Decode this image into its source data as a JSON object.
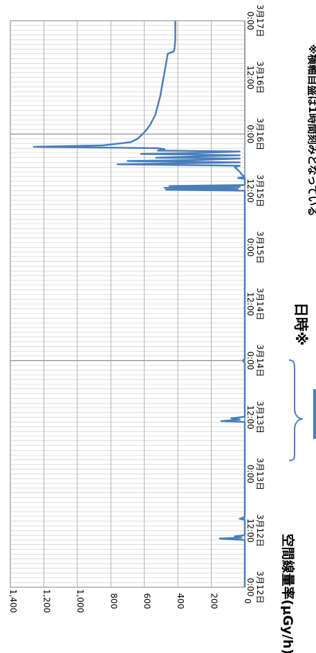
{
  "chart_data": {
    "type": "line",
    "title": "",
    "xlabel": "日時※",
    "ylabel": "空間線量率(μGy/h)",
    "note": "※横軸目盛は1時間刻みとなっている",
    "x_unit_hours_from_start": "3月12日 0:00 origin",
    "xlim_hours": [
      0,
      120
    ],
    "ylim": [
      0,
      1400
    ],
    "y_ticks": [
      0,
      200,
      400,
      600,
      800,
      1000,
      1200,
      1400
    ],
    "y_tick_labels": [
      "0",
      "200",
      "400",
      "600",
      "800",
      "1,000",
      "1,200",
      "1,400"
    ],
    "x_tick_hours": [
      0,
      12,
      24,
      36,
      48,
      60,
      72,
      84,
      96,
      108,
      120
    ],
    "x_tick_labels": [
      [
        "3月12日",
        "0:00"
      ],
      [
        "3月12日",
        "12:00"
      ],
      [
        "3月13日",
        "0:00"
      ],
      [
        "3月13日",
        "12:00"
      ],
      [
        "3月14日",
        "0:00"
      ],
      [
        "3月14日",
        "12:00"
      ],
      [
        "3月15日",
        "0:00"
      ],
      [
        "3月15日",
        "12:00"
      ],
      [
        "3月16日",
        "0:00"
      ],
      [
        "3月16日",
        "12:00"
      ],
      [
        "3月17日",
        "0:00"
      ]
    ],
    "grid": true,
    "series": [
      {
        "name": "",
        "color": "#4a7ebb",
        "x_hours": [
          0,
          10,
          10.3,
          10.5,
          10.8,
          11,
          14.3,
          14.5,
          14.8,
          15,
          35,
          35.2,
          35.5,
          35.8,
          36.1,
          47.5,
          48,
          48.5,
          84,
          84.2,
          84.4,
          84.6,
          84.8,
          85,
          85.2,
          86.5,
          86.7,
          86.9,
          87.5,
          88,
          89,
          89.3,
          89.6,
          90,
          90.3,
          90.5,
          90.8,
          91,
          91.3,
          91.5,
          91.8,
          92,
          92.3,
          92.5,
          92.8,
          93,
          93.3,
          93.6,
          94,
          94.3,
          95,
          96,
          97,
          98,
          99,
          100,
          102,
          104,
          106,
          108,
          110,
          112,
          113,
          113.5,
          114,
          116,
          118,
          120
        ],
        "values": [
          0,
          0,
          150,
          20,
          60,
          0,
          0,
          30,
          5,
          0,
          0,
          140,
          30,
          80,
          0,
          0,
          10,
          0,
          0,
          470,
          40,
          480,
          30,
          450,
          0,
          0,
          40,
          0,
          20,
          30,
          60,
          30,
          760,
          30,
          700,
          300,
          30,
          530,
          250,
          30,
          620,
          300,
          30,
          520,
          480,
          520,
          1260,
          850,
          750,
          680,
          640,
          610,
          585,
          565,
          550,
          535,
          520,
          505,
          495,
          485,
          475,
          465,
          460,
          425,
          420,
          415,
          415,
          415
        ]
      }
    ]
  }
}
